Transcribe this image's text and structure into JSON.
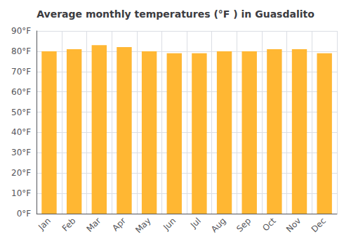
{
  "chart_data": {
    "type": "bar",
    "title": "Average monthly temperatures (°F ) in Guasdalito",
    "categories": [
      "Jan",
      "Feb",
      "Mar",
      "Apr",
      "May",
      "Jun",
      "Jul",
      "Aug",
      "Sep",
      "Oct",
      "Nov",
      "Dec"
    ],
    "values": [
      80,
      81,
      83,
      82,
      80,
      79,
      79,
      80,
      80,
      81,
      81,
      79
    ],
    "color": "#FFB733",
    "ylim": [
      0,
      90
    ],
    "yticks": [
      {
        "value": 0,
        "label": "0°F"
      },
      {
        "value": 10,
        "label": "10°F"
      },
      {
        "value": 20,
        "label": "20°F"
      },
      {
        "value": 30,
        "label": "30°F"
      },
      {
        "value": 40,
        "label": "40°F"
      },
      {
        "value": 50,
        "label": "50°F"
      },
      {
        "value": 60,
        "label": "60°F"
      },
      {
        "value": 70,
        "label": "70°F"
      },
      {
        "value": 80,
        "label": "80°F"
      },
      {
        "value": 90,
        "label": "90°F"
      }
    ],
    "grid": true
  }
}
